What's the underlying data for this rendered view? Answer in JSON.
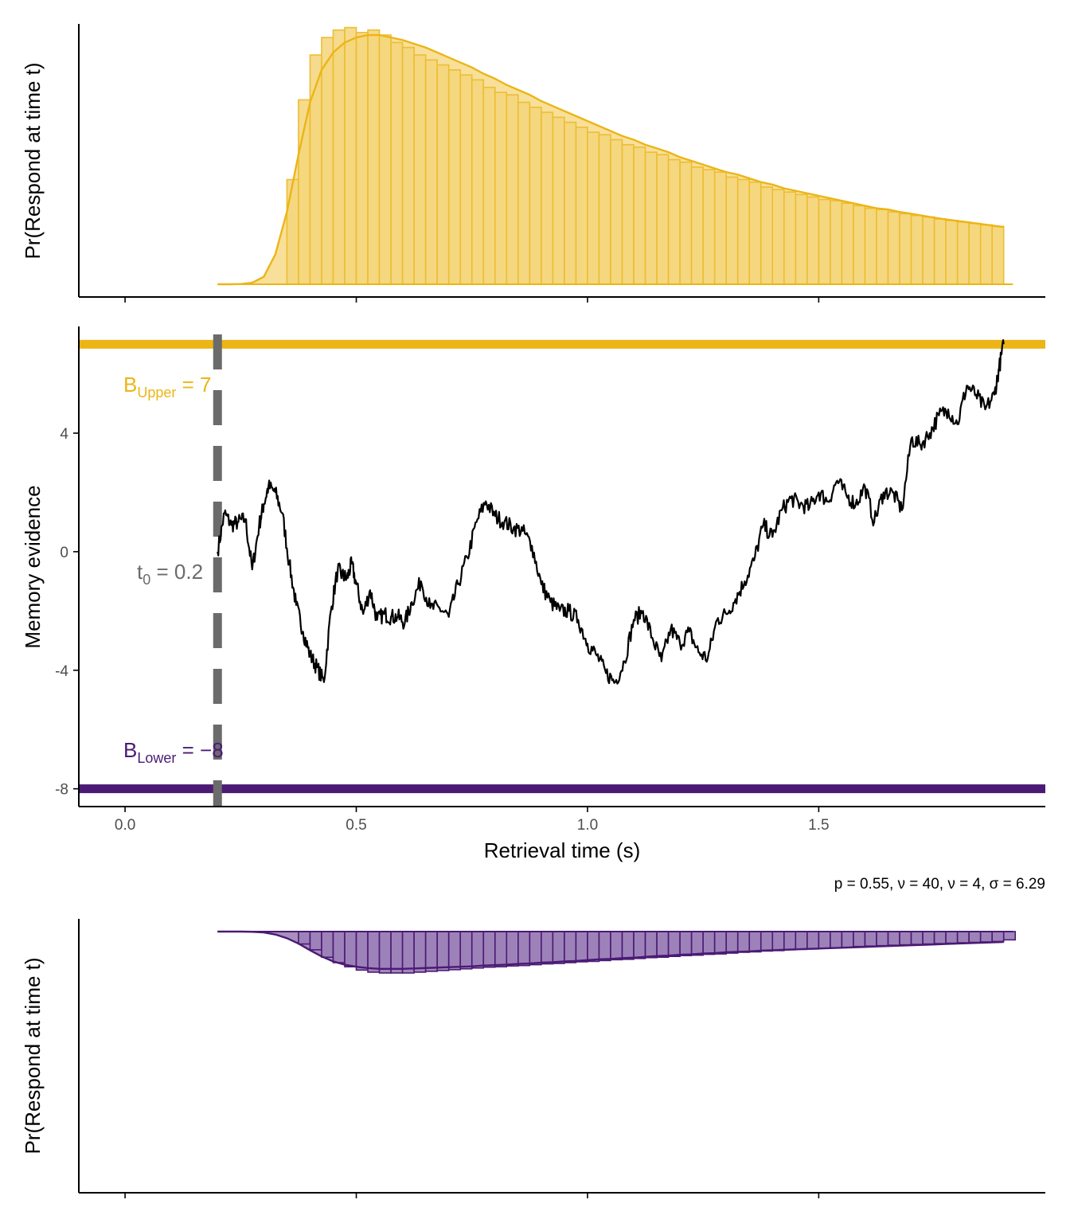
{
  "colors": {
    "upper": "#ecb516",
    "lower": "#4b1a74",
    "path": "#000000",
    "t0": "#6b6b6b"
  },
  "caption": "p = 0.55, ν = 40, ν = 4, σ = 6.29",
  "annotations": {
    "upper_B": "B",
    "upper_sub": "Upper",
    "upper_rest": " = 7",
    "lower_B": "B",
    "lower_sub": "Lower",
    "lower_rest": " = −8",
    "t0_t": "t",
    "t0_sub": "0",
    "t0_rest": " = 0.2"
  },
  "chart_data": [
    {
      "type": "bar",
      "name": "upper-density",
      "ylabel": "Pr(Respond at time t)",
      "x": [
        0.2,
        0.225,
        0.25,
        0.275,
        0.3,
        0.325,
        0.35,
        0.375,
        0.4,
        0.425,
        0.45,
        0.475,
        0.5,
        0.525,
        0.55,
        0.575,
        0.6,
        0.625,
        0.65,
        0.675,
        0.7,
        0.725,
        0.75,
        0.775,
        0.8,
        0.825,
        0.85,
        0.875,
        0.9,
        0.925,
        0.95,
        0.975,
        1.0,
        1.025,
        1.05,
        1.075,
        1.1,
        1.125,
        1.15,
        1.175,
        1.2,
        1.225,
        1.25,
        1.275,
        1.3,
        1.325,
        1.35,
        1.375,
        1.4,
        1.425,
        1.45,
        1.475,
        1.5,
        1.525,
        1.55,
        1.575,
        1.6,
        1.625,
        1.65,
        1.675,
        1.7,
        1.725,
        1.75,
        1.775,
        1.8,
        1.825,
        1.85,
        1.875,
        1.9
      ],
      "density": [
        0.0,
        0.0,
        0.001,
        0.006,
        0.03,
        0.12,
        0.29,
        0.52,
        0.73,
        0.86,
        0.93,
        0.97,
        0.99,
        1.0,
        1.0,
        0.99,
        0.98,
        0.965,
        0.95,
        0.93,
        0.91,
        0.89,
        0.87,
        0.845,
        0.825,
        0.8,
        0.78,
        0.76,
        0.735,
        0.715,
        0.695,
        0.675,
        0.655,
        0.635,
        0.615,
        0.595,
        0.58,
        0.56,
        0.545,
        0.53,
        0.51,
        0.495,
        0.48,
        0.465,
        0.45,
        0.44,
        0.425,
        0.41,
        0.4,
        0.385,
        0.375,
        0.365,
        0.355,
        0.345,
        0.335,
        0.325,
        0.315,
        0.305,
        0.3,
        0.29,
        0.283,
        0.275,
        0.267,
        0.26,
        0.254,
        0.248,
        0.242,
        0.236,
        0.23
      ],
      "bin_width": 0.025,
      "bins_x": [
        0.35,
        0.375,
        0.4,
        0.425,
        0.45,
        0.475,
        0.5,
        0.525,
        0.55,
        0.575,
        0.6,
        0.625,
        0.65,
        0.675,
        0.7,
        0.725,
        0.75,
        0.775,
        0.8,
        0.825,
        0.85,
        0.875,
        0.9,
        0.925,
        0.95,
        0.975,
        1.0,
        1.025,
        1.05,
        1.075,
        1.1,
        1.125,
        1.15,
        1.175,
        1.2,
        1.225,
        1.25,
        1.275,
        1.3,
        1.325,
        1.35,
        1.375,
        1.4,
        1.425,
        1.45,
        1.475,
        1.5,
        1.525,
        1.55,
        1.575,
        1.6,
        1.625,
        1.65,
        1.675,
        1.7,
        1.725,
        1.75,
        1.775,
        1.8,
        1.825,
        1.85,
        1.875
      ],
      "bins_y": [
        0.42,
        0.74,
        0.92,
        0.99,
        1.02,
        1.03,
        1.01,
        1.02,
        1.0,
        0.97,
        0.95,
        0.92,
        0.9,
        0.88,
        0.86,
        0.84,
        0.82,
        0.79,
        0.77,
        0.76,
        0.73,
        0.71,
        0.69,
        0.67,
        0.65,
        0.63,
        0.61,
        0.6,
        0.58,
        0.56,
        0.55,
        0.53,
        0.52,
        0.5,
        0.49,
        0.47,
        0.46,
        0.45,
        0.43,
        0.42,
        0.41,
        0.39,
        0.38,
        0.37,
        0.36,
        0.35,
        0.34,
        0.335,
        0.325,
        0.315,
        0.305,
        0.3,
        0.29,
        0.283,
        0.276,
        0.27,
        0.262,
        0.256,
        0.25,
        0.244,
        0.238,
        0.232
      ]
    },
    {
      "type": "line",
      "name": "evidence-path",
      "xlabel": "Retrieval time (s)",
      "ylabel": "Memory evidence",
      "xlim": [
        -0.1,
        1.99
      ],
      "ylim": [
        -8.6,
        7.6
      ],
      "xticks": [
        0.0,
        0.5,
        1.0,
        1.5
      ],
      "xtick_labels": [
        "0.0",
        "0.5",
        "1.0",
        "1.5"
      ],
      "yticks": [
        -8,
        -4,
        0,
        4
      ],
      "ytick_labels": [
        "-8",
        "-4",
        "0",
        "4"
      ],
      "upper_bound": 7,
      "lower_bound": -8,
      "t0": 0.2,
      "x": [
        0.2,
        0.215,
        0.23,
        0.245,
        0.26,
        0.275,
        0.29,
        0.3,
        0.31,
        0.325,
        0.34,
        0.355,
        0.37,
        0.385,
        0.4,
        0.415,
        0.43,
        0.445,
        0.46,
        0.47,
        0.48,
        0.49,
        0.5,
        0.515,
        0.53,
        0.545,
        0.56,
        0.575,
        0.59,
        0.605,
        0.62,
        0.64,
        0.66,
        0.68,
        0.7,
        0.72,
        0.74,
        0.76,
        0.78,
        0.8,
        0.82,
        0.84,
        0.86,
        0.88,
        0.9,
        0.92,
        0.94,
        0.96,
        0.98,
        1.0,
        1.02,
        1.04,
        1.06,
        1.08,
        1.1,
        1.12,
        1.14,
        1.16,
        1.18,
        1.2,
        1.22,
        1.24,
        1.26,
        1.28,
        1.3,
        1.32,
        1.34,
        1.36,
        1.38,
        1.4,
        1.42,
        1.44,
        1.46,
        1.48,
        1.5,
        1.52,
        1.54,
        1.56,
        1.58,
        1.6,
        1.62,
        1.64,
        1.66,
        1.68,
        1.7,
        1.72,
        1.74,
        1.76,
        1.78,
        1.8,
        1.82,
        1.84,
        1.86,
        1.88,
        1.89,
        1.9
      ],
      "y": [
        0.0,
        1.3,
        0.9,
        1.0,
        1.1,
        -0.6,
        0.9,
        1.6,
        2.2,
        2.0,
        1.3,
        -0.4,
        -1.8,
        -2.7,
        -3.5,
        -3.9,
        -4.4,
        -2.0,
        -0.6,
        -0.8,
        -0.9,
        -0.4,
        -1.1,
        -2.1,
        -1.3,
        -2.3,
        -2.1,
        -2.2,
        -2.2,
        -2.4,
        -1.7,
        -1.0,
        -1.9,
        -1.9,
        -2.2,
        -1.1,
        -0.2,
        1.0,
        1.7,
        1.2,
        1.0,
        0.8,
        0.7,
        0.2,
        -1.1,
        -1.7,
        -2.0,
        -2.0,
        -2.3,
        -3.1,
        -3.5,
        -4.1,
        -4.4,
        -3.7,
        -2.3,
        -2.0,
        -2.9,
        -3.7,
        -2.6,
        -3.1,
        -2.7,
        -3.4,
        -3.6,
        -2.3,
        -2.1,
        -1.6,
        -1.0,
        -0.3,
        0.9,
        0.5,
        1.4,
        1.8,
        1.6,
        1.5,
        2.0,
        1.7,
        2.4,
        1.9,
        1.6,
        2.2,
        1.0,
        2.0,
        2.0,
        1.4,
        3.8,
        3.6,
        4.0,
        4.6,
        4.8,
        4.3,
        5.6,
        5.3,
        4.8,
        5.3,
        6.2,
        7.0
      ]
    },
    {
      "type": "bar",
      "name": "lower-density",
      "ylabel": "Pr(Respond at time t)",
      "x": [
        0.2,
        0.225,
        0.25,
        0.275,
        0.3,
        0.325,
        0.35,
        0.375,
        0.4,
        0.425,
        0.45,
        0.475,
        0.5,
        0.525,
        0.55,
        0.575,
        0.6,
        0.625,
        0.65,
        0.675,
        0.7,
        0.725,
        0.75,
        0.775,
        0.8,
        0.825,
        0.85,
        0.875,
        0.9,
        0.925,
        0.95,
        0.975,
        1.0,
        1.025,
        1.05,
        1.075,
        1.1,
        1.125,
        1.15,
        1.175,
        1.2,
        1.225,
        1.25,
        1.275,
        1.3,
        1.325,
        1.35,
        1.375,
        1.4,
        1.425,
        1.45,
        1.475,
        1.5,
        1.525,
        1.55,
        1.575,
        1.6,
        1.625,
        1.65,
        1.675,
        1.7,
        1.725,
        1.75,
        1.775,
        1.8,
        1.825,
        1.85,
        1.875,
        1.9
      ],
      "density": [
        0.0,
        0.0,
        0.0,
        0.005,
        0.02,
        0.07,
        0.16,
        0.29,
        0.45,
        0.6,
        0.72,
        0.8,
        0.85,
        0.88,
        0.9,
        0.9,
        0.9,
        0.89,
        0.88,
        0.87,
        0.86,
        0.85,
        0.84,
        0.82,
        0.81,
        0.8,
        0.78,
        0.77,
        0.75,
        0.74,
        0.72,
        0.71,
        0.69,
        0.67,
        0.66,
        0.64,
        0.63,
        0.61,
        0.59,
        0.58,
        0.56,
        0.55,
        0.53,
        0.52,
        0.5,
        0.49,
        0.48,
        0.46,
        0.45,
        0.44,
        0.43,
        0.42,
        0.41,
        0.4,
        0.39,
        0.38,
        0.37,
        0.36,
        0.35,
        0.34,
        0.33,
        0.32,
        0.31,
        0.3,
        0.29,
        0.28,
        0.27,
        0.26,
        0.25
      ],
      "bin_width": 0.025,
      "bins_x": [
        0.375,
        0.4,
        0.425,
        0.45,
        0.475,
        0.5,
        0.525,
        0.55,
        0.575,
        0.6,
        0.625,
        0.65,
        0.675,
        0.7,
        0.725,
        0.75,
        0.775,
        0.8,
        0.825,
        0.85,
        0.875,
        0.9,
        0.925,
        0.95,
        0.975,
        1.0,
        1.025,
        1.05,
        1.075,
        1.1,
        1.125,
        1.15,
        1.175,
        1.2,
        1.225,
        1.25,
        1.275,
        1.3,
        1.325,
        1.35,
        1.375,
        1.4,
        1.425,
        1.45,
        1.475,
        1.5,
        1.525,
        1.55,
        1.575,
        1.6,
        1.625,
        1.65,
        1.675,
        1.7,
        1.725,
        1.75,
        1.775,
        1.8,
        1.825,
        1.85,
        1.875,
        1.9
      ],
      "bins_y": [
        0.3,
        0.44,
        0.62,
        0.75,
        0.85,
        0.93,
        0.98,
        1.0,
        1.0,
        1.0,
        0.98,
        0.96,
        0.94,
        0.92,
        0.9,
        0.88,
        0.86,
        0.85,
        0.83,
        0.82,
        0.8,
        0.78,
        0.77,
        0.75,
        0.73,
        0.72,
        0.7,
        0.68,
        0.67,
        0.65,
        0.63,
        0.62,
        0.6,
        0.58,
        0.57,
        0.55,
        0.54,
        0.52,
        0.5,
        0.49,
        0.47,
        0.46,
        0.44,
        0.43,
        0.42,
        0.4,
        0.39,
        0.38,
        0.36,
        0.35,
        0.34,
        0.33,
        0.32,
        0.31,
        0.3,
        0.29,
        0.28,
        0.27,
        0.26,
        0.25,
        0.24,
        0.2
      ]
    }
  ]
}
